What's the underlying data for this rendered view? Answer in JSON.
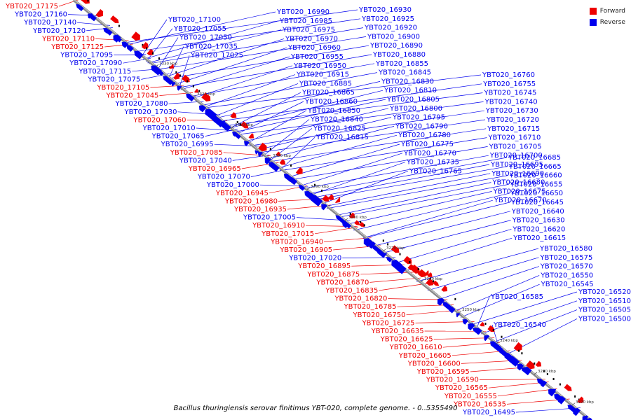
{
  "caption": "Bacillus thuringiensis serovar finitimus YBT-020, complete genome. - 0..5355490",
  "legend": [
    {
      "label": "Forward",
      "color": "#ee0000"
    },
    {
      "label": "Reverse",
      "color": "#0000ee"
    }
  ],
  "colors": {
    "forward": "#ee0000",
    "reverse": "#0000ee",
    "axis": "#888888"
  },
  "scale_ticks": [
    "3330 kbp",
    "3320 kbp",
    "3310 kbp",
    "3300 kbp",
    "3290 kbp",
    "3280 kbp",
    "3270 kbp",
    "3260 kbp",
    "3250 kbp",
    "3240 kbp",
    "3230 kbp",
    "3220 kbp",
    "3210 kbp"
  ],
  "labels_left": [
    {
      "text": "YBT020_17175",
      "strand": "forward"
    },
    {
      "text": "YBT020_17160",
      "strand": "reverse"
    },
    {
      "text": "YBT020_17140",
      "strand": "reverse"
    },
    {
      "text": "YBT020_17120",
      "strand": "reverse"
    },
    {
      "text": "YBT020_17110",
      "strand": "forward"
    },
    {
      "text": "YBT020_17125",
      "strand": "forward"
    },
    {
      "text": "YBT020_17095",
      "strand": "reverse"
    },
    {
      "text": "YBT020_17090",
      "strand": "reverse"
    },
    {
      "text": "YBT020_17115",
      "strand": "reverse"
    },
    {
      "text": "YBT020_17075",
      "strand": "reverse"
    },
    {
      "text": "YBT020_17105",
      "strand": "forward"
    },
    {
      "text": "YBT020_17045",
      "strand": "forward"
    },
    {
      "text": "YBT020_17080",
      "strand": "reverse"
    },
    {
      "text": "YBT020_17030",
      "strand": "reverse"
    },
    {
      "text": "YBT020_17060",
      "strand": "forward"
    },
    {
      "text": "YBT020_17010",
      "strand": "reverse"
    },
    {
      "text": "YBT020_17065",
      "strand": "reverse"
    },
    {
      "text": "YBT020_16995",
      "strand": "reverse"
    },
    {
      "text": "YBT020_17085",
      "strand": "forward"
    },
    {
      "text": "YBT020_17040",
      "strand": "reverse"
    },
    {
      "text": "YBT020_16965",
      "strand": "forward"
    },
    {
      "text": "YBT020_17070",
      "strand": "reverse"
    },
    {
      "text": "YBT020_17000",
      "strand": "reverse"
    },
    {
      "text": "YBT020_16945",
      "strand": "forward"
    },
    {
      "text": "YBT020_16980",
      "strand": "forward"
    },
    {
      "text": "YBT020_16935",
      "strand": "forward"
    },
    {
      "text": "YBT020_17005",
      "strand": "reverse"
    },
    {
      "text": "YBT020_16910",
      "strand": "forward"
    },
    {
      "text": "YBT020_17015",
      "strand": "forward"
    },
    {
      "text": "YBT020_16940",
      "strand": "forward"
    },
    {
      "text": "YBT020_16905",
      "strand": "forward"
    },
    {
      "text": "YBT020_17020",
      "strand": "reverse"
    },
    {
      "text": "YBT020_16895",
      "strand": "forward"
    },
    {
      "text": "YBT020_16875",
      "strand": "forward"
    },
    {
      "text": "YBT020_16870",
      "strand": "forward"
    },
    {
      "text": "YBT020_16835",
      "strand": "forward"
    },
    {
      "text": "YBT020_16820",
      "strand": "forward"
    },
    {
      "text": "YBT020_16785",
      "strand": "forward"
    },
    {
      "text": "YBT020_16750",
      "strand": "forward"
    },
    {
      "text": "YBT020_16725",
      "strand": "forward"
    },
    {
      "text": "YBT020_16635",
      "strand": "forward"
    },
    {
      "text": "YBT020_16625",
      "strand": "forward"
    },
    {
      "text": "YBT020_16610",
      "strand": "forward"
    },
    {
      "text": "YBT020_16605",
      "strand": "forward"
    },
    {
      "text": "YBT020_16600",
      "strand": "forward"
    },
    {
      "text": "YBT020_16595",
      "strand": "forward"
    },
    {
      "text": "YBT020_16590",
      "strand": "forward"
    },
    {
      "text": "YBT020_16565",
      "strand": "forward"
    },
    {
      "text": "YBT020_16555",
      "strand": "forward"
    },
    {
      "text": "YBT020_16535",
      "strand": "forward"
    },
    {
      "text": "YBT020_16495",
      "strand": "reverse"
    }
  ],
  "labels_right": [
    {
      "text": "YBT020_17100"
    },
    {
      "text": "YBT020_17055"
    },
    {
      "text": "YBT020_17050"
    },
    {
      "text": "YBT020_17035"
    },
    {
      "text": "YBT020_17025"
    },
    {
      "text": "YBT020_16990"
    },
    {
      "text": "YBT020_16985"
    },
    {
      "text": "YBT020_16975"
    },
    {
      "text": "YBT020_16970"
    },
    {
      "text": "YBT020_16960"
    },
    {
      "text": "YBT020_16955"
    },
    {
      "text": "YBT020_16950"
    },
    {
      "text": "YBT020_16915"
    },
    {
      "text": "YBT020_16885"
    },
    {
      "text": "YBT020_16865"
    },
    {
      "text": "YBT020_16860"
    },
    {
      "text": "YBT020_16850"
    },
    {
      "text": "YBT020_16840"
    },
    {
      "text": "YBT020_16825"
    },
    {
      "text": "YBT020_16815"
    },
    {
      "text": "YBT020_16930"
    },
    {
      "text": "YBT020_16925"
    },
    {
      "text": "YBT020_16920"
    },
    {
      "text": "YBT020_16900"
    },
    {
      "text": "YBT020_16890"
    },
    {
      "text": "YBT020_16880"
    },
    {
      "text": "YBT020_16855"
    },
    {
      "text": "YBT020_16845"
    },
    {
      "text": "YBT020_16830"
    },
    {
      "text": "YBT020_16810"
    },
    {
      "text": "YBT020_16805"
    },
    {
      "text": "YBT020_16800"
    },
    {
      "text": "YBT020_16795"
    },
    {
      "text": "YBT020_16790"
    },
    {
      "text": "YBT020_16780"
    },
    {
      "text": "YBT020_16775"
    },
    {
      "text": "YBT020_16770"
    },
    {
      "text": "YBT020_16735"
    },
    {
      "text": "YBT020_16765"
    },
    {
      "text": "YBT020_16760"
    },
    {
      "text": "YBT020_16755"
    },
    {
      "text": "YBT020_16745"
    },
    {
      "text": "YBT020_16740"
    },
    {
      "text": "YBT020_16730"
    },
    {
      "text": "YBT020_16720"
    },
    {
      "text": "YBT020_16715"
    },
    {
      "text": "YBT020_16710"
    },
    {
      "text": "YBT020_16705"
    },
    {
      "text": "YBT020_16700"
    },
    {
      "text": "YBT020_16695"
    },
    {
      "text": "YBT020_16690"
    },
    {
      "text": "YBT020_16680"
    },
    {
      "text": "YBT020_16675"
    },
    {
      "text": "YBT020_16670"
    },
    {
      "text": "YBT020_16685"
    },
    {
      "text": "YBT020_16665"
    },
    {
      "text": "YBT020_16660"
    },
    {
      "text": "YBT020_16655"
    },
    {
      "text": "YBT020_16650"
    },
    {
      "text": "YBT020_16645"
    },
    {
      "text": "YBT020_16640"
    },
    {
      "text": "YBT020_16630"
    },
    {
      "text": "YBT020_16620"
    },
    {
      "text": "YBT020_16615"
    },
    {
      "text": "YBT020_16580"
    },
    {
      "text": "YBT020_16575"
    },
    {
      "text": "YBT020_16570"
    },
    {
      "text": "YBT020_16550"
    },
    {
      "text": "YBT020_16545"
    },
    {
      "text": "YBT020_16585"
    },
    {
      "text": "YBT020_16540"
    },
    {
      "text": "YBT020_16520"
    },
    {
      "text": "YBT020_16510"
    },
    {
      "text": "YBT020_16505"
    },
    {
      "text": "YBT020_16500"
    }
  ]
}
